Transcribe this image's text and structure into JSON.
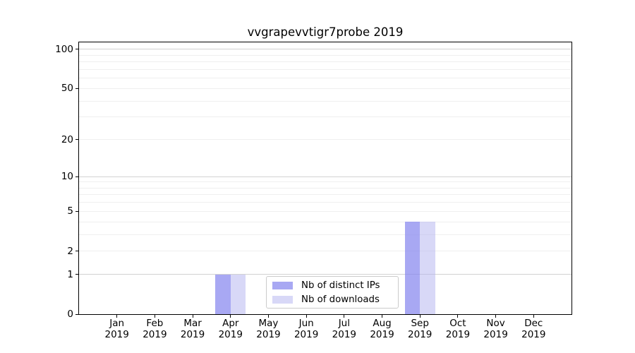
{
  "chart_data": {
    "type": "bar",
    "title": "vvgrapevvtigr7probe 2019",
    "categories": [
      "Jan",
      "Feb",
      "Mar",
      "Apr",
      "May",
      "Jun",
      "Jul",
      "Aug",
      "Sep",
      "Oct",
      "Nov",
      "Dec"
    ],
    "x_year": "2019",
    "series": [
      {
        "name": "Nb of distinct IPs",
        "color": "rgba(134,134,239,0.72)",
        "values": [
          0,
          0,
          0,
          1,
          0,
          0,
          0,
          0,
          4,
          0,
          0,
          0
        ]
      },
      {
        "name": "Nb of downloads",
        "color": "rgba(178,178,240,0.50)",
        "values": [
          0,
          0,
          0,
          1,
          0,
          0,
          0,
          0,
          4,
          0,
          0,
          0
        ]
      }
    ],
    "xlabel": "",
    "ylabel": "",
    "yscale": "log1p",
    "ylim": [
      0,
      113
    ],
    "y_ticks": [
      100,
      50,
      20,
      10,
      5,
      2,
      1,
      0
    ],
    "gridlines": {
      "major": [
        1,
        10,
        100
      ],
      "minor": [
        2,
        3,
        4,
        5,
        6,
        7,
        8,
        9,
        20,
        30,
        40,
        50,
        60,
        70,
        80,
        90
      ]
    },
    "legend": {
      "position": "lower center"
    },
    "colors": {
      "grid_major": "#d2d2d2",
      "grid_minor": "#efefef",
      "axis": "#000000",
      "background": "#ffffff"
    }
  }
}
